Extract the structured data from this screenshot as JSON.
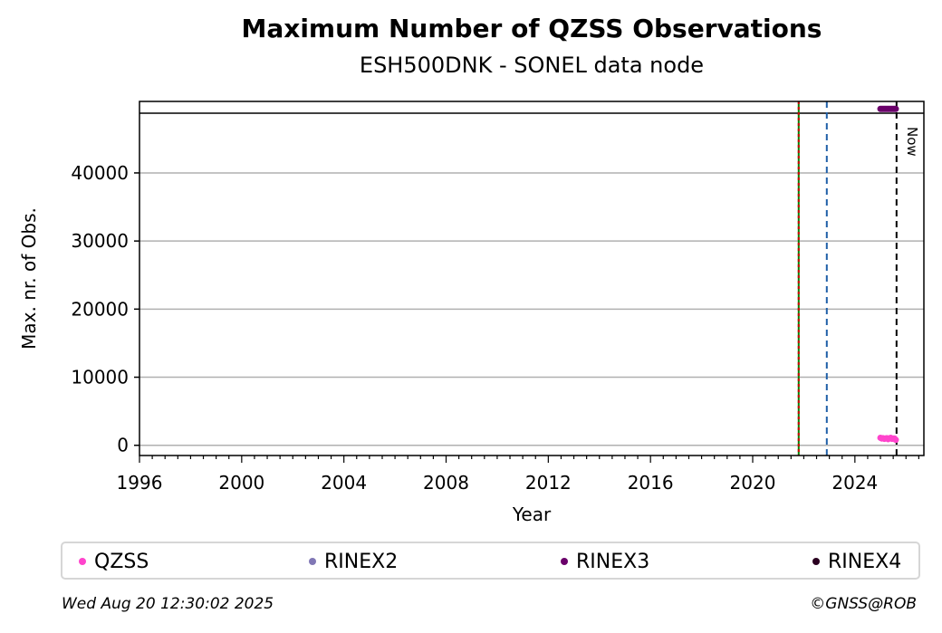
{
  "title": "Maximum Number of QZSS Observations",
  "subtitle": "ESH500DNK - SONEL data node",
  "timestamp": "Wed Aug 20 12:30:02 2025",
  "copyright": "©GNSS@ROB",
  "now_label": "Now",
  "legend": [
    {
      "label": "QZSS",
      "color": "#ff44cc"
    },
    {
      "label": "RINEX2",
      "color": "#8077b5"
    },
    {
      "label": "RINEX3",
      "color": "#6a006a"
    },
    {
      "label": "RINEX4",
      "color": "#2a0020"
    }
  ],
  "chart_data": {
    "type": "scatter",
    "title": "Maximum Number of QZSS Observations",
    "subtitle": "ESH500DNK - SONEL data node",
    "xlabel": "Year",
    "ylabel": "Max. nr. of Obs.",
    "xlim": [
      1996,
      2026.7
    ],
    "ylim": [
      -1500,
      50500
    ],
    "x_ticks": [
      1996,
      2000,
      2004,
      2008,
      2012,
      2016,
      2020,
      2024
    ],
    "y_ticks": [
      0,
      10000,
      20000,
      30000,
      40000
    ],
    "grid": "y",
    "reference_lines": [
      {
        "x": 2021.8,
        "color": "#008000",
        "style": "solid"
      },
      {
        "x": 2021.8,
        "color": "#cc0000",
        "style": "dotted"
      },
      {
        "x": 2022.9,
        "color": "#1f5fa8",
        "style": "dashed"
      },
      {
        "x": 2025.63,
        "color": "#000000",
        "style": "dashed",
        "label": "Now"
      }
    ],
    "series": [
      {
        "name": "QZSS",
        "color": "#ff44cc",
        "x": [
          2025.0,
          2025.05,
          2025.1,
          2025.15,
          2025.2,
          2025.25,
          2025.3,
          2025.35,
          2025.4,
          2025.45,
          2025.5,
          2025.55,
          2025.6
        ],
        "y": [
          1100,
          1000,
          1050,
          950,
          1000,
          1050,
          900,
          1000,
          1100,
          950,
          1000,
          1000,
          800
        ]
      },
      {
        "name": "RINEX3",
        "color": "#6a006a",
        "x": [
          2025.0,
          2025.05,
          2025.1,
          2025.15,
          2025.2,
          2025.25,
          2025.3,
          2025.35,
          2025.4,
          2025.45,
          2025.5,
          2025.55,
          2025.6
        ],
        "y": [
          49400,
          49400,
          49400,
          49400,
          49400,
          49400,
          49400,
          49400,
          49400,
          49400,
          49400,
          49400,
          49400
        ]
      }
    ],
    "legend_position": "below"
  }
}
